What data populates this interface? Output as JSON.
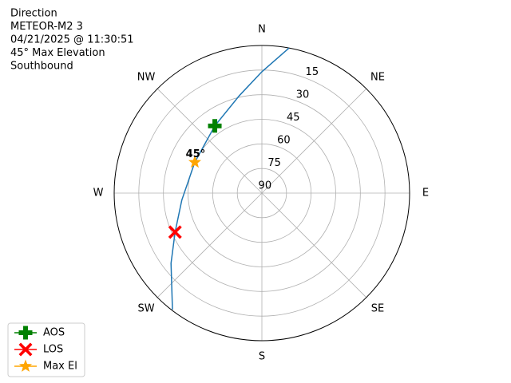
{
  "chart_data": {
    "type": "polar",
    "info": [
      "Direction",
      "METEOR-M2 3",
      "04/21/2025 @ 11:30:51",
      "45° Max Elevation",
      "Southbound"
    ],
    "theta_ticks": [
      {
        "value": 0,
        "label": "N"
      },
      {
        "value": 45,
        "label": "NE"
      },
      {
        "value": 90,
        "label": "E"
      },
      {
        "value": 135,
        "label": "SE"
      },
      {
        "value": 180,
        "label": "S"
      },
      {
        "value": 225,
        "label": "SW"
      },
      {
        "value": 270,
        "label": "W"
      },
      {
        "value": 315,
        "label": "NW"
      }
    ],
    "rlim": [
      90,
      0
    ],
    "rticks": [
      15,
      30,
      45,
      60,
      75,
      90
    ],
    "grid": true,
    "track": {
      "color": "#1f77b4",
      "azimuth": [
        10.6,
        0,
        347,
        325,
        294.7,
        265,
        245.8,
        232.3,
        217.5
      ],
      "elevation": [
        0,
        16,
        29,
        40,
        45,
        41,
        32,
        20,
        0.5
      ]
    },
    "series": [
      {
        "name": "AOS",
        "color": "#008000",
        "marker": "plus",
        "azimuth": 325,
        "elevation": 40
      },
      {
        "name": "LOS",
        "color": "#ff0000",
        "marker": "x",
        "azimuth": 245.8,
        "elevation": 32
      },
      {
        "name": "Max El",
        "color": "#ffa500",
        "marker": "star",
        "azimuth": 294.7,
        "elevation": 45,
        "annotation": "45°"
      }
    ],
    "legend": "lower left"
  }
}
